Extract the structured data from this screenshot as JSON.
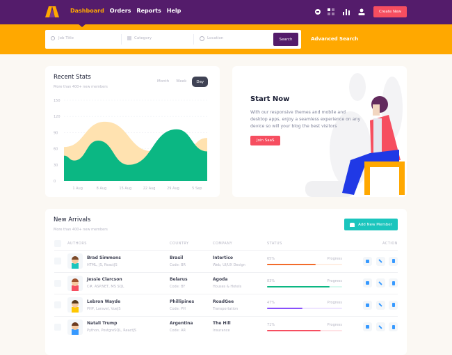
{
  "nav": {
    "items": [
      "Dashboard",
      "Orders",
      "Reports",
      "Help"
    ],
    "active": "Dashboard",
    "icons": [
      "notification-bell-icon",
      "apps-grid-icon",
      "bar-chart-icon",
      "user-icon"
    ],
    "create_label": "Create New"
  },
  "search": {
    "job_placeholder": "Job Title",
    "category_placeholder": "Category",
    "location_placeholder": "Location",
    "button": "Search",
    "advanced": "Advanced Search"
  },
  "stats": {
    "title": "Recent Stats",
    "subtitle": "More than 400+ new members",
    "tabs": [
      "Month",
      "Week",
      "Day"
    ],
    "active_tab": "Day"
  },
  "chart_data": {
    "type": "area",
    "title": "",
    "ylim": [
      0,
      150
    ],
    "yticks": [
      0,
      30,
      60,
      90,
      120,
      150
    ],
    "xtick_labels": [
      "1 Aug",
      "8 Aug",
      "15 Aug",
      "22 Aug",
      "29 Aug",
      "5 Sep"
    ],
    "grid": "horizontal dashed",
    "series": [
      {
        "color": "#ffe2b0",
        "points": [
          [
            "28 Jul",
            63
          ],
          [
            "9 Aug",
            110
          ],
          [
            "23 Aug",
            55
          ],
          [
            "31 Aug",
            50
          ],
          [
            "8 Sep",
            80
          ]
        ]
      },
      {
        "color": "#0bb783",
        "points": [
          [
            "28 Jul",
            47
          ],
          [
            "31 Jul",
            38
          ],
          [
            "7 Aug",
            75
          ],
          [
            "16 Aug",
            30
          ],
          [
            "30 Aug",
            96
          ],
          [
            "8 Sep",
            55
          ]
        ]
      }
    ]
  },
  "promo": {
    "title": "Start Now",
    "text": "With our responsive themes and mobile and desktop apps, enjoy a seamless experience on any device so will your blog the best visitors",
    "button": "Join SaaS"
  },
  "arrivals": {
    "title": "New Arrivals",
    "subtitle": "More than 400+ new members",
    "add_button": "Add New Member",
    "columns": [
      "AUTHORS",
      "COUNTRY",
      "COMPANY",
      "STATUS",
      "ACTION"
    ],
    "progress_label": "Progress",
    "rows": [
      {
        "name": "Brad Simmons",
        "skills": "HTML, JS, ReactJS",
        "country": "Brasil",
        "code": "Code: BR",
        "company": "Intertico",
        "sector": "Web, UI/UX Design",
        "percent": "65%",
        "value": 65,
        "color": "#f26b2a",
        "track": "#ffeee3"
      },
      {
        "name": "Jessie Clarcson",
        "skills": "C#, ASP.NET, MS SQL",
        "country": "Belarus",
        "code": "Code: BY",
        "company": "Agoda",
        "sector": "Houses & Hotels",
        "percent": "83%",
        "value": 83,
        "color": "#0bb783",
        "track": "#d7f9ef"
      },
      {
        "name": "Lebron Wayde",
        "skills": "PHP, Laravel, VueJS",
        "country": "Phillipines",
        "code": "Code: PH",
        "company": "RoadGee",
        "sector": "Transportation",
        "percent": "47%",
        "value": 47,
        "color": "#8950fc",
        "track": "#eee5ff"
      },
      {
        "name": "Natali Trump",
        "skills": "Python, PostgreSQL, ReactJS",
        "country": "Argentina",
        "code": "Code: AR",
        "company": "The Hill",
        "sector": "Insurance",
        "percent": "71%",
        "value": 71,
        "color": "#f64e60",
        "track": "#ffe2e5"
      }
    ]
  }
}
